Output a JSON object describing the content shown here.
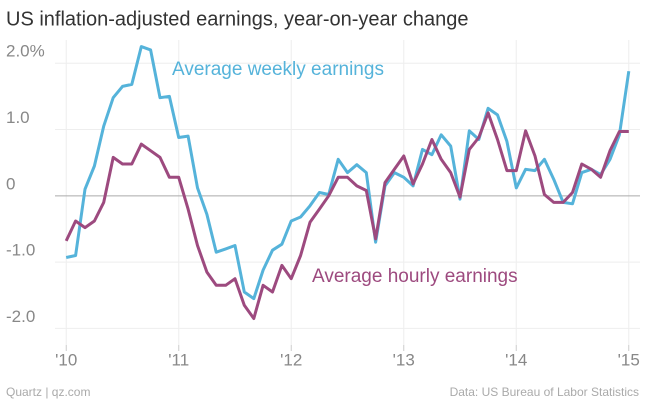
{
  "chart_data": {
    "type": "line",
    "title": "US inflation-adjusted earnings, year-on-year change",
    "annotations": [
      "Average weekly earnings",
      "Average hourly earnings"
    ],
    "source": "Data: US Bureau of Labor Statistics",
    "credit": "Quartz | qz.com",
    "x": [
      2010,
      2010.083,
      2010.167,
      2010.25,
      2010.333,
      2010.417,
      2010.5,
      2010.583,
      2010.667,
      2010.75,
      2010.833,
      2010.917,
      2011,
      2011.083,
      2011.167,
      2011.25,
      2011.333,
      2011.417,
      2011.5,
      2011.583,
      2011.667,
      2011.75,
      2011.833,
      2011.917,
      2012,
      2012.083,
      2012.167,
      2012.25,
      2012.333,
      2012.417,
      2012.5,
      2012.583,
      2012.667,
      2012.75,
      2012.833,
      2012.917,
      2013,
      2013.083,
      2013.167,
      2013.25,
      2013.333,
      2013.417,
      2013.5,
      2013.583,
      2013.667,
      2013.75,
      2013.833,
      2013.917,
      2014,
      2014.083,
      2014.167,
      2014.25,
      2014.333,
      2014.417,
      2014.5,
      2014.583,
      2014.667,
      2014.75,
      2014.833,
      2014.917,
      2015
    ],
    "series": [
      {
        "name": "Average weekly earnings",
        "color": "#55b3da",
        "values": [
          -0.93,
          -0.9,
          0.1,
          0.45,
          1.05,
          1.48,
          1.65,
          1.68,
          2.25,
          2.2,
          1.48,
          1.5,
          0.88,
          0.9,
          0.12,
          -0.28,
          -0.85,
          -0.8,
          -0.75,
          -1.45,
          -1.55,
          -1.12,
          -0.82,
          -0.73,
          -0.38,
          -0.32,
          -0.15,
          0.05,
          0.02,
          0.55,
          0.35,
          0.47,
          0.35,
          -0.7,
          0.15,
          0.35,
          0.28,
          0.15,
          0.7,
          0.62,
          0.92,
          0.75,
          -0.05,
          0.98,
          0.85,
          1.32,
          1.22,
          0.82,
          0.12,
          0.4,
          0.38,
          0.55,
          0.25,
          -0.1,
          -0.12,
          0.35,
          0.4,
          0.32,
          0.55,
          0.92,
          1.88
        ]
      },
      {
        "name": "Average hourly earnings",
        "color": "#9d4a7f",
        "values": [
          -0.68,
          -0.38,
          -0.48,
          -0.38,
          -0.1,
          0.58,
          0.48,
          0.48,
          0.78,
          0.68,
          0.58,
          0.28,
          0.28,
          -0.2,
          -0.75,
          -1.15,
          -1.35,
          -1.35,
          -1.25,
          -1.65,
          -1.85,
          -1.35,
          -1.45,
          -1.05,
          -1.25,
          -0.9,
          -0.4,
          -0.2,
          0.0,
          0.28,
          0.28,
          0.15,
          0.08,
          -0.65,
          0.2,
          0.4,
          0.6,
          0.18,
          0.48,
          0.85,
          0.55,
          0.35,
          -0.02,
          0.7,
          0.88,
          1.25,
          0.85,
          0.38,
          0.38,
          0.98,
          0.6,
          0.02,
          -0.1,
          -0.1,
          0.05,
          0.48,
          0.4,
          0.28,
          0.68,
          0.97,
          0.97
        ]
      }
    ],
    "xlim": [
      2009.9,
      2015.1
    ],
    "xticks": [
      {
        "value": 2010,
        "label": "'10"
      },
      {
        "value": 2011,
        "label": "'11"
      },
      {
        "value": 2012,
        "label": "'12"
      },
      {
        "value": 2013,
        "label": "'13"
      },
      {
        "value": 2014,
        "label": "'14"
      },
      {
        "value": 2015,
        "label": "'15"
      }
    ],
    "ylim": [
      -2.25,
      2.35
    ],
    "yticks": [
      {
        "value": -2,
        "label": "-2.0"
      },
      {
        "value": -1,
        "label": "-1.0"
      },
      0,
      {
        "value": 1,
        "label": "1.0"
      },
      {
        "value": 2,
        "label": "2.0%"
      }
    ],
    "grid": true
  }
}
